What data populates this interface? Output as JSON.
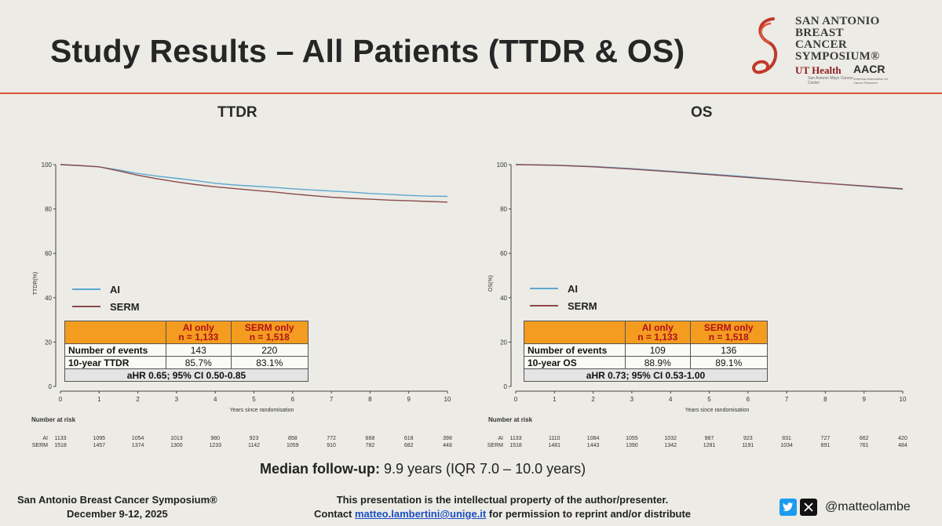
{
  "slide": {
    "title": "Study Results – All Patients (TTDR & OS)",
    "accent_color": "#d8563a"
  },
  "logo": {
    "sabcs_lines": [
      "SAN ANTONIO",
      "BREAST CANCER",
      "SYMPOSIUM®"
    ],
    "ut_health": "UT Health",
    "ut_health_sub": "San Antonio Mays Cancer Center",
    "aacr": "AACR",
    "aacr_sub": "American Association for Cancer Research"
  },
  "legend": {
    "ai": "AI",
    "serm": "SERM",
    "ai_color": "#5ba9cf",
    "serm_color": "#8a4a4a"
  },
  "table_headers": {
    "ai": [
      "AI only",
      "n = 1,133"
    ],
    "serm": [
      "SERM only",
      "n = 1,518"
    ]
  },
  "risk_table": {
    "title": "Number at risk",
    "ai_label": "AI",
    "serm_label": "SERM"
  },
  "chart_data": [
    {
      "type": "line",
      "title": "TTDR",
      "xlabel": "Years since randomisation",
      "ylabel": "TTDR(%)",
      "xlim": [
        0,
        10
      ],
      "ylim": [
        0,
        100
      ],
      "xticks": [
        0,
        1,
        2,
        3,
        4,
        5,
        6,
        7,
        8,
        9,
        10
      ],
      "yticks": [
        0,
        20,
        40,
        60,
        80,
        100
      ],
      "series": [
        {
          "name": "AI",
          "x": [
            0,
            0.5,
            1,
            1.5,
            2,
            2.5,
            3,
            3.5,
            4,
            4.5,
            5,
            5.5,
            6,
            6.5,
            7,
            7.5,
            8,
            8.5,
            9,
            9.5,
            10
          ],
          "y": [
            100,
            99.5,
            99,
            97.6,
            96,
            94.8,
            93.8,
            92.8,
            91.6,
            90.8,
            90.3,
            89.8,
            89.1,
            88.6,
            88.1,
            87.6,
            87.0,
            86.6,
            86.1,
            85.8,
            85.7
          ]
        },
        {
          "name": "SERM",
          "x": [
            0,
            0.5,
            1,
            1.5,
            2,
            2.5,
            3,
            3.5,
            4,
            4.5,
            5,
            5.5,
            6,
            6.5,
            7,
            7.5,
            8,
            8.5,
            9,
            9.5,
            10
          ],
          "y": [
            100,
            99.6,
            99,
            97.2,
            95.2,
            93.6,
            92.2,
            91.0,
            90.0,
            89.2,
            88.4,
            87.7,
            86.8,
            86.0,
            85.3,
            84.8,
            84.4,
            84.0,
            83.7,
            83.4,
            83.1
          ]
        }
      ],
      "stats": {
        "row1_label": "Number of events",
        "row1_ai": "143",
        "row1_serm": "220",
        "row2_label": "10-year TTDR",
        "row2_ai": "85.7%",
        "row2_serm": "83.1%",
        "ahr": "aHR 0.65; 95% CI 0.50-0.85"
      },
      "at_risk": {
        "ai": [
          "1133",
          "1095",
          "1054",
          "1013",
          "980",
          "923",
          "858",
          "772",
          "668",
          "618",
          "398"
        ],
        "serm": [
          "1518",
          "1457",
          "1374",
          "1300",
          "1233",
          "1142",
          "1059",
          "910",
          "782",
          "682",
          "448"
        ]
      }
    },
    {
      "type": "line",
      "title": "OS",
      "xlabel": "Years since randomisation",
      "ylabel": "OS(%)",
      "xlim": [
        0,
        10
      ],
      "ylim": [
        0,
        100
      ],
      "xticks": [
        0,
        1,
        2,
        3,
        4,
        5,
        6,
        7,
        8,
        9,
        10
      ],
      "yticks": [
        0,
        20,
        40,
        60,
        80,
        100
      ],
      "series": [
        {
          "name": "AI",
          "x": [
            0,
            1,
            2,
            3,
            4,
            5,
            6,
            7,
            8,
            9,
            10
          ],
          "y": [
            100,
            99.8,
            99.2,
            98.2,
            97.0,
            95.8,
            94.5,
            93.0,
            91.6,
            90.2,
            88.9
          ]
        },
        {
          "name": "SERM",
          "x": [
            0,
            1,
            2,
            3,
            4,
            5,
            6,
            7,
            8,
            9,
            10
          ],
          "y": [
            100,
            99.7,
            99.0,
            98.0,
            96.8,
            95.5,
            94.2,
            92.9,
            91.6,
            90.4,
            89.1
          ]
        }
      ],
      "stats": {
        "row1_label": "Number of events",
        "row1_ai": "109",
        "row1_serm": "136",
        "row2_label": "10-year OS",
        "row2_ai": "88.9%",
        "row2_serm": "89.1%",
        "ahr": "aHR 0.73; 95% CI 0.53-1.00"
      },
      "at_risk": {
        "ai": [
          "1133",
          "1110",
          "1084",
          "1055",
          "1032",
          "987",
          "923",
          "831",
          "727",
          "662",
          "420"
        ],
        "serm": [
          "1518",
          "1481",
          "1443",
          "1390",
          "1342",
          "1281",
          "1191",
          "1034",
          "891",
          "761",
          "484"
        ]
      }
    }
  ],
  "footer": {
    "median_label": "Median follow-up:",
    "median_value": "9.9 years (IQR 7.0 – 10.0 years)",
    "symposium": "San Antonio Breast Cancer Symposium®",
    "dates": "December 9-12, 2025",
    "property_note": "This presentation is the intellectual property of the author/presenter.",
    "contact_prefix": "Contact",
    "email": "matteo.lambertini@unige.it",
    "contact_suffix": "for permission to reprint and/or distribute",
    "handle": "@matteolambe"
  }
}
